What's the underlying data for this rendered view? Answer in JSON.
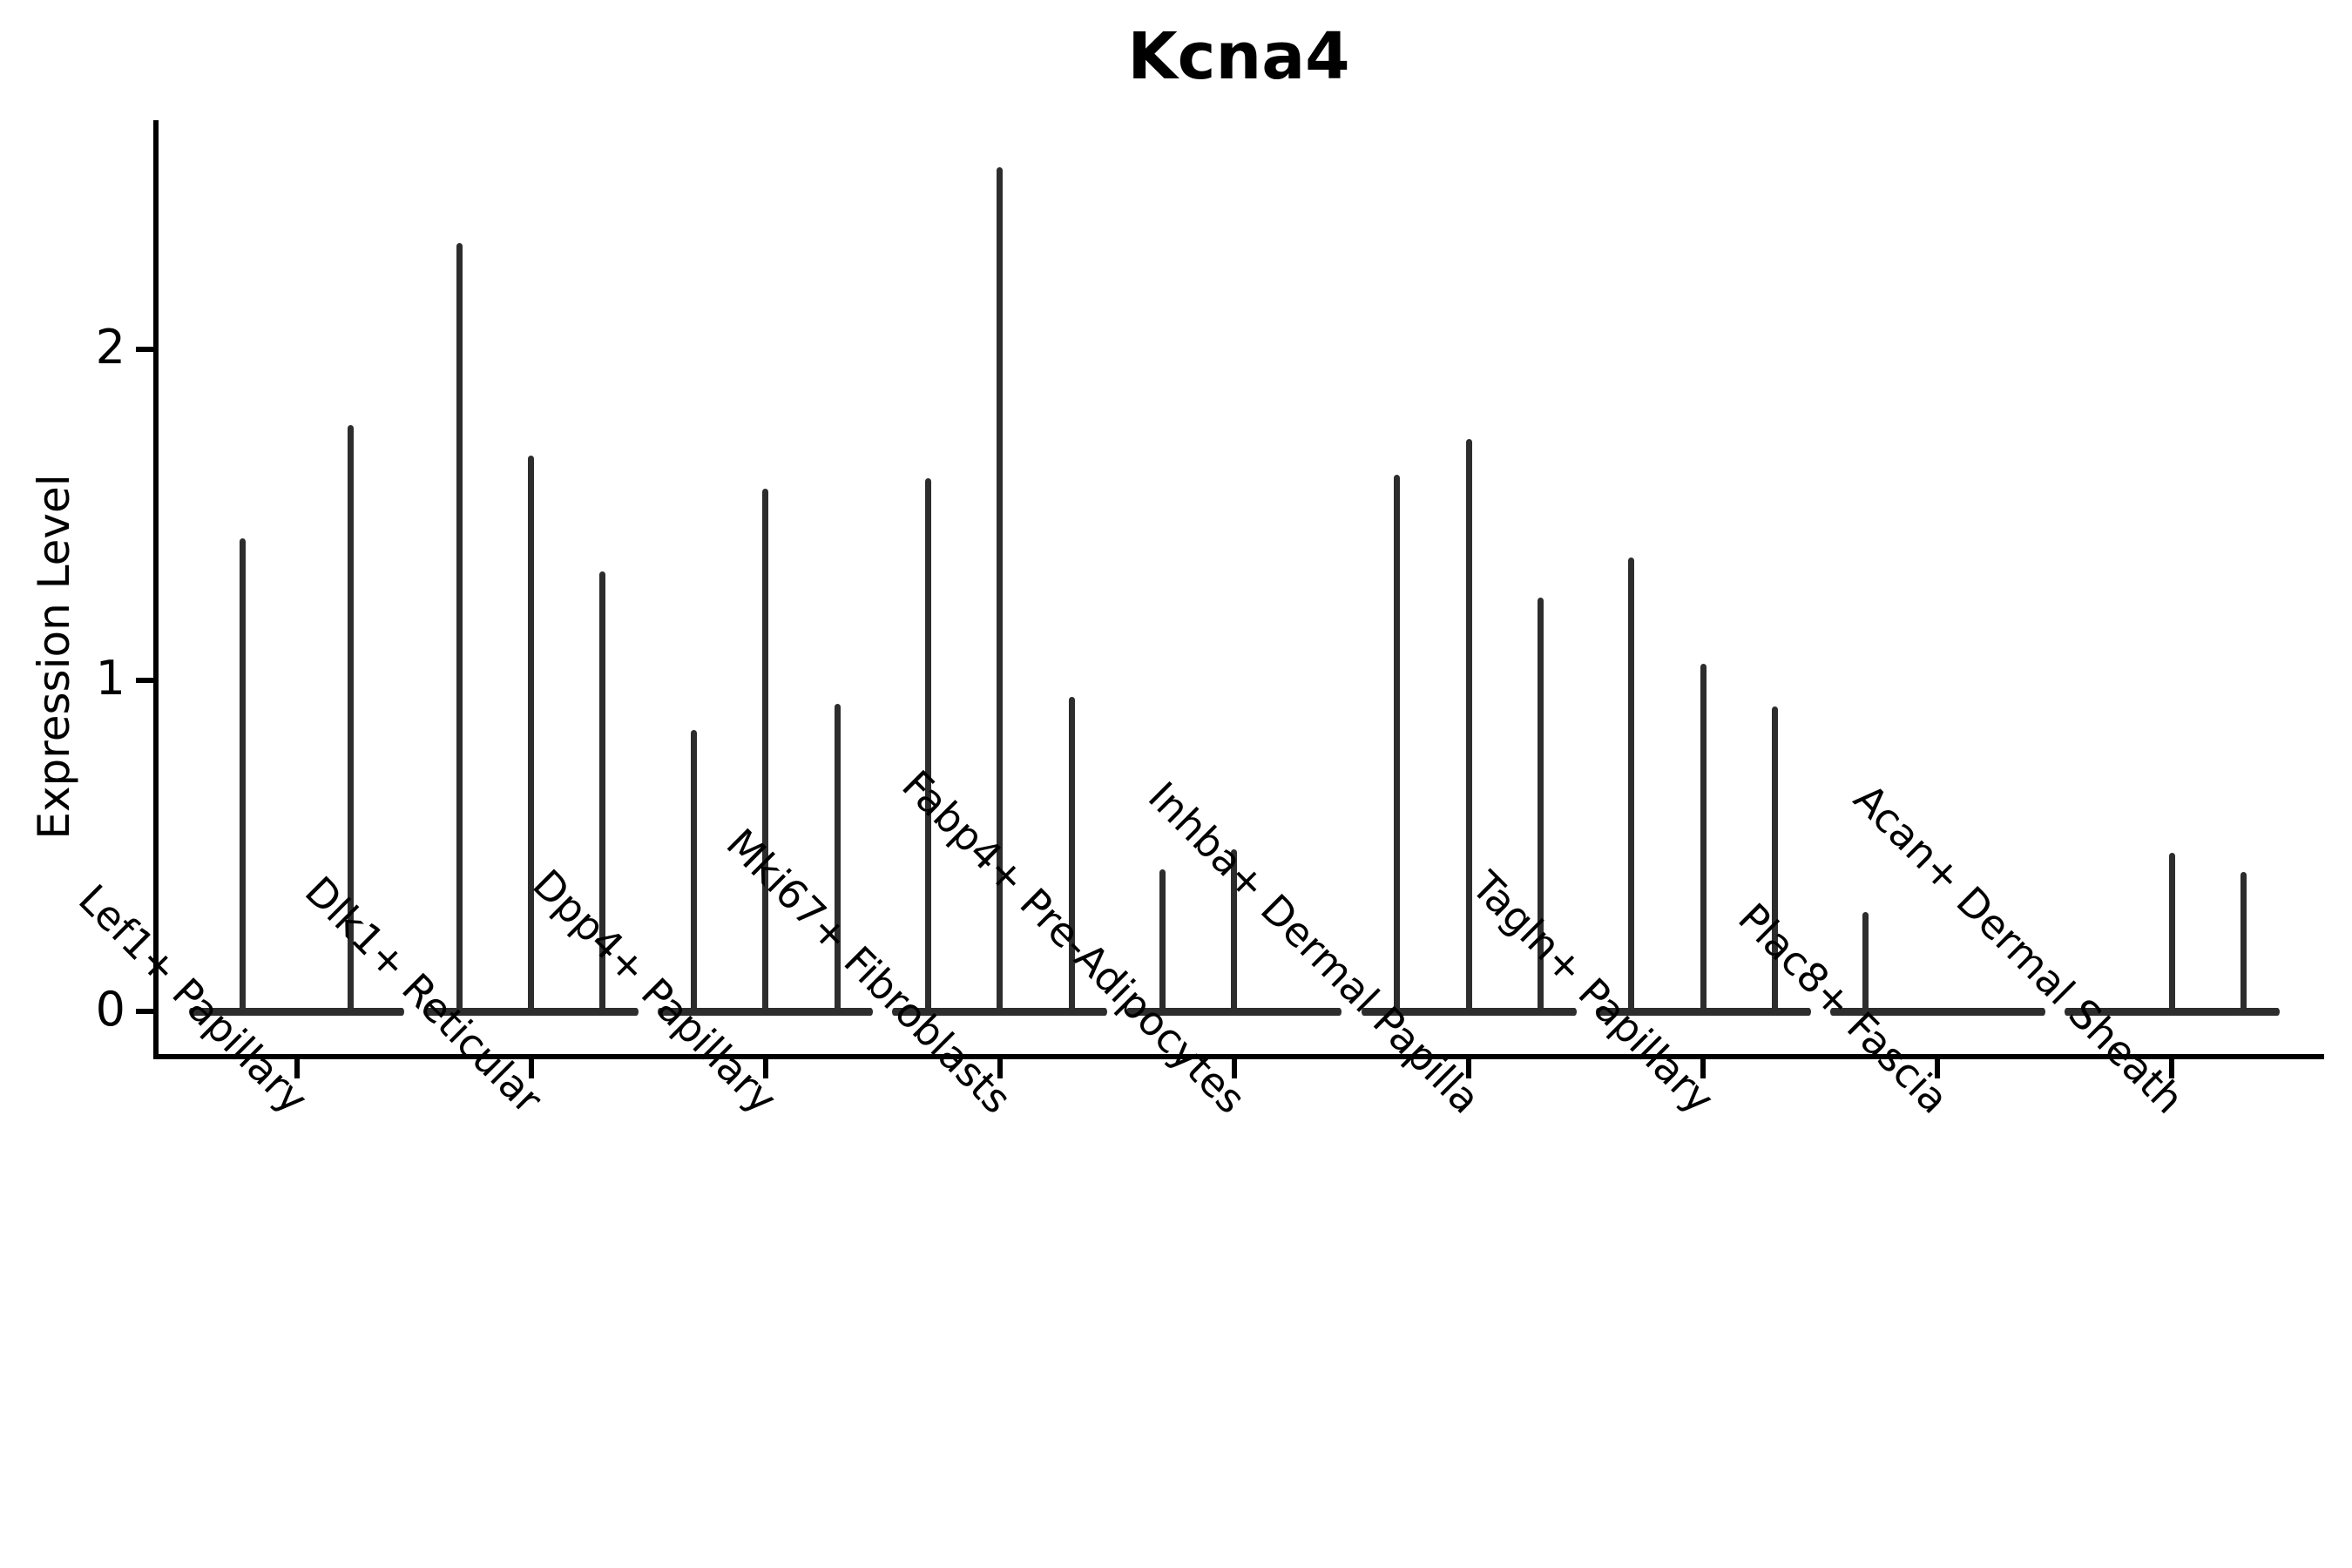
{
  "chart_data": {
    "type": "violin",
    "title": "Kcna4",
    "ylabel": "Expression Level",
    "xlabel": "",
    "yticks": [
      "0",
      "1",
      "2"
    ],
    "ytick_values": [
      0,
      1,
      2
    ],
    "ylim": [
      -0.13,
      2.72
    ],
    "grid": false,
    "legend": false,
    "description": "Violin plot of Kcna4 expression level per fibroblast cell-type group; violins are collapsed at 0 with thin spikes reaching the maximum expression of rare positive cells. Each group contains 2-3 violins (sub-samples); value 0 means a flat violin with no spike.",
    "categories": [
      "Lef1+ Papillary",
      "Dlk1+ Reticular",
      "Dpp4+ Papillary",
      "Mki67+ Fibroblasts",
      "Fabp4+ Pre-Adipocytes",
      "Inhba+ Dermal Papilla",
      "Tagln+ Papillary",
      "Plac8+ Fascia",
      "Acan+ Dermal Sheath"
    ],
    "groups": [
      {
        "label": "Lef1+ Papillary",
        "violin_max_expression": [
          1.43,
          1.77
        ]
      },
      {
        "label": "Dlk1+ Reticular",
        "violin_max_expression": [
          2.32,
          1.68,
          1.33
        ]
      },
      {
        "label": "Dpp4+ Papillary",
        "violin_max_expression": [
          0.85,
          1.58,
          0.93
        ]
      },
      {
        "label": "Mki67+ Fibroblasts",
        "violin_max_expression": [
          1.61,
          2.55,
          0.95
        ]
      },
      {
        "label": "Fabp4+ Pre-Adipocytes",
        "violin_max_expression": [
          0.43,
          0.49,
          0
        ]
      },
      {
        "label": "Inhba+ Dermal Papilla",
        "violin_max_expression": [
          1.62,
          1.73,
          1.25
        ]
      },
      {
        "label": "Tagln+ Papillary",
        "violin_max_expression": [
          1.37,
          1.05,
          0.92
        ]
      },
      {
        "label": "Plac8+ Fascia",
        "violin_max_expression": [
          0.3,
          0,
          0
        ]
      },
      {
        "label": "Acan+ Dermal Sheath",
        "violin_max_expression": [
          0,
          0.48,
          0.42
        ]
      }
    ],
    "colors": {
      "violin": "#2d2d2d",
      "axis": "#000000",
      "text": "#000000",
      "background": "#ffffff"
    }
  }
}
